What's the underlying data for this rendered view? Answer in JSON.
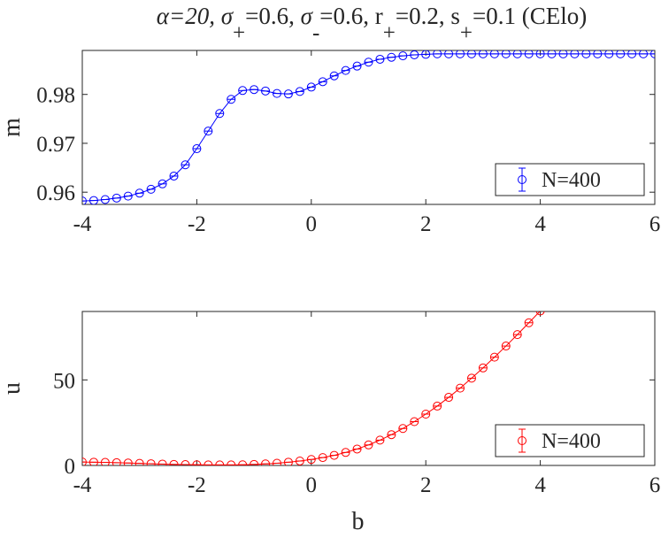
{
  "title": {
    "alpha": "α=20, ",
    "sigma_plus": "σ",
    "sigma_plus_sub": "+",
    "sigma_plus_val": "=0.6, ",
    "sigma_minus": "σ",
    "sigma_minus_sub": "-",
    "sigma_minus_val": "=0.6, ",
    "r_plus": "r",
    "r_plus_sub": "+",
    "r_plus_val": "=0.2, ",
    "s_plus": "s",
    "s_plus_sub": "+",
    "s_plus_val": "=0.1 (CElo)"
  },
  "colors": {
    "top_series": "#0000ff",
    "bottom_series": "#ff0000",
    "axis": "#262626"
  },
  "chart_data": [
    {
      "type": "line",
      "marker": "circle",
      "errorbars": true,
      "xlabel": "",
      "ylabel": "m",
      "xlim": [
        -4,
        6
      ],
      "ylim": [
        0.9575,
        0.989
      ],
      "xticks": [
        -4,
        -2,
        0,
        2,
        4,
        6
      ],
      "yticks": [
        0.96,
        0.97,
        0.98
      ],
      "ytick_labels": [
        "0.96",
        "0.97",
        "0.98"
      ],
      "legend_position": "bottom-right",
      "x": [
        -4.0,
        -3.8,
        -3.6,
        -3.4,
        -3.2,
        -3.0,
        -2.8,
        -2.6,
        -2.4,
        -2.2,
        -2.0,
        -1.8,
        -1.6,
        -1.4,
        -1.2,
        -1.0,
        -0.8,
        -0.6,
        -0.4,
        -0.2,
        0.0,
        0.2,
        0.4,
        0.6,
        0.8,
        1.0,
        1.2,
        1.4,
        1.6,
        1.8,
        2.0,
        2.2,
        2.4,
        2.6,
        2.8,
        3.0,
        3.2,
        3.4,
        3.6,
        3.8,
        4.0,
        4.2,
        4.4,
        4.6,
        4.8,
        5.0,
        5.2,
        5.4,
        5.6,
        5.8,
        6.0
      ],
      "series": [
        {
          "name": "N=400",
          "values": [
            0.9582,
            0.9583,
            0.9585,
            0.9588,
            0.9592,
            0.9598,
            0.9606,
            0.9617,
            0.9633,
            0.9656,
            0.9689,
            0.9725,
            0.9761,
            0.979,
            0.9808,
            0.981,
            0.9807,
            0.9802,
            0.9801,
            0.9806,
            0.9815,
            0.9826,
            0.9838,
            0.9849,
            0.9858,
            0.9866,
            0.9872,
            0.9876,
            0.9879,
            0.9881,
            0.9882,
            0.9883,
            0.9883,
            0.9883,
            0.9883,
            0.9883,
            0.9883,
            0.9883,
            0.9883,
            0.9883,
            0.9883,
            0.9883,
            0.9883,
            0.9883,
            0.9883,
            0.9883,
            0.9883,
            0.9883,
            0.9883,
            0.9883,
            0.9883
          ]
        }
      ]
    },
    {
      "type": "line",
      "marker": "circle",
      "errorbars": true,
      "xlabel": "b",
      "ylabel": "u",
      "xlim": [
        -4,
        6
      ],
      "ylim": [
        0,
        90
      ],
      "xticks": [
        -4,
        -2,
        0,
        2,
        4,
        6
      ],
      "yticks": [
        0,
        50
      ],
      "ytick_labels": [
        "0",
        "50"
      ],
      "legend_position": "bottom-right",
      "x": [
        -4.0,
        -3.8,
        -3.6,
        -3.4,
        -3.2,
        -3.0,
        -2.8,
        -2.6,
        -2.4,
        -2.2,
        -2.0,
        -1.8,
        -1.6,
        -1.4,
        -1.2,
        -1.0,
        -0.8,
        -0.6,
        -0.4,
        -0.2,
        0.0,
        0.2,
        0.4,
        0.6,
        0.8,
        1.0,
        1.2,
        1.4,
        1.6,
        1.8,
        2.0,
        2.2,
        2.4,
        2.6,
        2.8,
        3.0,
        3.2,
        3.4,
        3.6,
        3.8,
        4.0
      ],
      "series": [
        {
          "name": "N=400",
          "values": [
            2.0,
            1.9,
            1.8,
            1.6,
            1.4,
            1.2,
            1.0,
            0.8,
            0.6,
            0.5,
            0.4,
            0.3,
            0.3,
            0.3,
            0.4,
            0.6,
            0.9,
            1.3,
            1.9,
            2.6,
            3.5,
            4.6,
            5.9,
            7.6,
            9.6,
            12.0,
            14.8,
            18.0,
            21.6,
            25.6,
            30.0,
            34.7,
            39.8,
            45.2,
            51.0,
            57.0,
            63.3,
            69.8,
            76.5,
            83.4,
            90.3
          ]
        }
      ]
    }
  ]
}
